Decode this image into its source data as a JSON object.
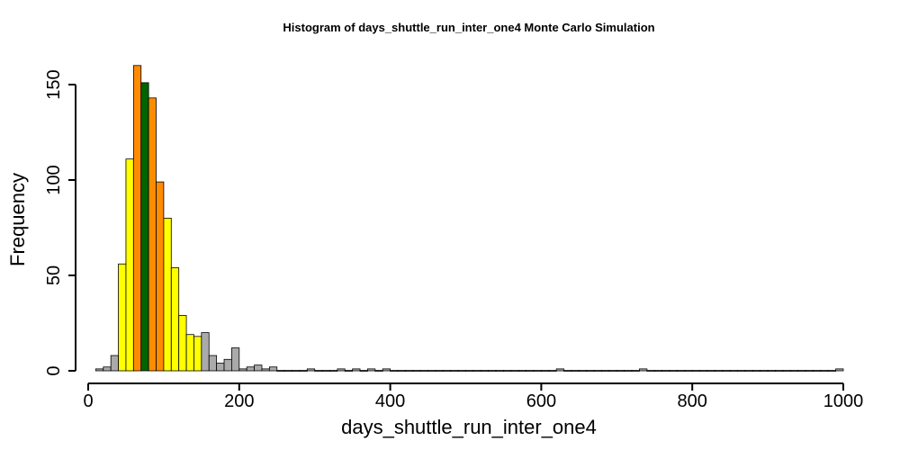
{
  "chart_data": {
    "type": "histogram",
    "title": "Histogram of  days_shuttle_run_inter_one4  Monte Carlo Simulation",
    "xlabel": "days_shuttle_run_inter_one4",
    "ylabel": "Frequency",
    "xlim": [
      0,
      1000
    ],
    "ylim": [
      0,
      160
    ],
    "bin_width": 10,
    "x_ticks": [
      0,
      200,
      400,
      600,
      800,
      1000
    ],
    "y_ticks": [
      0,
      50,
      100,
      150
    ],
    "colors": {
      "gray": "#aaaaaa",
      "yellow": "#ffff00",
      "orange": "#ff8c00",
      "green": "#006400",
      "outline": "#000000"
    },
    "bins": [
      {
        "x0": 10,
        "x1": 20,
        "count": 1,
        "color": "gray"
      },
      {
        "x0": 20,
        "x1": 30,
        "count": 2,
        "color": "gray"
      },
      {
        "x0": 30,
        "x1": 40,
        "count": 8,
        "color": "gray"
      },
      {
        "x0": 40,
        "x1": 50,
        "count": 56,
        "color": "yellow"
      },
      {
        "x0": 50,
        "x1": 60,
        "count": 111,
        "color": "yellow"
      },
      {
        "x0": 60,
        "x1": 70,
        "count": 160,
        "color": "orange"
      },
      {
        "x0": 70,
        "x1": 80,
        "count": 151,
        "color": "green"
      },
      {
        "x0": 80,
        "x1": 90,
        "count": 143,
        "color": "orange"
      },
      {
        "x0": 90,
        "x1": 100,
        "count": 99,
        "color": "orange"
      },
      {
        "x0": 100,
        "x1": 110,
        "count": 80,
        "color": "yellow"
      },
      {
        "x0": 110,
        "x1": 120,
        "count": 54,
        "color": "yellow"
      },
      {
        "x0": 120,
        "x1": 130,
        "count": 29,
        "color": "yellow"
      },
      {
        "x0": 130,
        "x1": 140,
        "count": 19,
        "color": "yellow"
      },
      {
        "x0": 140,
        "x1": 150,
        "count": 18,
        "color": "yellow"
      },
      {
        "x0": 150,
        "x1": 160,
        "count": 20,
        "color": "gray"
      },
      {
        "x0": 160,
        "x1": 170,
        "count": 8,
        "color": "gray"
      },
      {
        "x0": 170,
        "x1": 180,
        "count": 4,
        "color": "gray"
      },
      {
        "x0": 180,
        "x1": 190,
        "count": 6,
        "color": "gray"
      },
      {
        "x0": 190,
        "x1": 200,
        "count": 12,
        "color": "gray"
      },
      {
        "x0": 200,
        "x1": 210,
        "count": 1,
        "color": "gray"
      },
      {
        "x0": 210,
        "x1": 220,
        "count": 2,
        "color": "gray"
      },
      {
        "x0": 220,
        "x1": 230,
        "count": 3,
        "color": "gray"
      },
      {
        "x0": 230,
        "x1": 240,
        "count": 1,
        "color": "gray"
      },
      {
        "x0": 240,
        "x1": 250,
        "count": 2,
        "color": "gray"
      },
      {
        "x0": 250,
        "x1": 260,
        "count": 0,
        "color": "gray"
      },
      {
        "x0": 260,
        "x1": 270,
        "count": 0,
        "color": "gray"
      },
      {
        "x0": 270,
        "x1": 280,
        "count": 0,
        "color": "gray"
      },
      {
        "x0": 280,
        "x1": 290,
        "count": 0,
        "color": "gray"
      },
      {
        "x0": 290,
        "x1": 300,
        "count": 1,
        "color": "gray"
      },
      {
        "x0": 300,
        "x1": 310,
        "count": 0,
        "color": "gray"
      },
      {
        "x0": 310,
        "x1": 320,
        "count": 0,
        "color": "gray"
      },
      {
        "x0": 320,
        "x1": 330,
        "count": 0,
        "color": "gray"
      },
      {
        "x0": 330,
        "x1": 340,
        "count": 1,
        "color": "gray"
      },
      {
        "x0": 340,
        "x1": 350,
        "count": 0,
        "color": "gray"
      },
      {
        "x0": 350,
        "x1": 360,
        "count": 1,
        "color": "gray"
      },
      {
        "x0": 360,
        "x1": 370,
        "count": 0,
        "color": "gray"
      },
      {
        "x0": 370,
        "x1": 380,
        "count": 1,
        "color": "gray"
      },
      {
        "x0": 380,
        "x1": 390,
        "count": 0,
        "color": "gray"
      },
      {
        "x0": 390,
        "x1": 400,
        "count": 1,
        "color": "gray"
      },
      {
        "x0": 620,
        "x1": 630,
        "count": 1,
        "color": "gray"
      },
      {
        "x0": 730,
        "x1": 740,
        "count": 1,
        "color": "gray"
      },
      {
        "x0": 990,
        "x1": 1000,
        "count": 1,
        "color": "gray"
      }
    ]
  }
}
